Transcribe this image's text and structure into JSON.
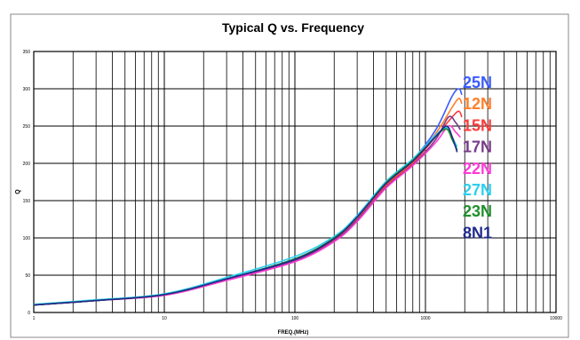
{
  "chart_data": {
    "type": "line",
    "title": "Typical Q vs. Frequency",
    "xlabel": "FREQ.(MHz)",
    "ylabel": "Q",
    "x_scale": "log",
    "xlim": [
      1,
      10000
    ],
    "ylim": [
      0,
      350
    ],
    "x_ticks": [
      1,
      10,
      100,
      1000,
      10000
    ],
    "y_ticks": [
      0,
      50,
      100,
      150,
      200,
      250,
      300,
      350
    ],
    "grid": true,
    "legend_position": "right, inside plot near top",
    "series": [
      {
        "name": "25N",
        "color": "#3a5bff",
        "x": [
          1,
          3,
          10,
          30,
          100,
          200,
          300,
          500,
          800,
          1200,
          1600,
          1800,
          1900
        ],
        "y": [
          10,
          16,
          24,
          45,
          72,
          100,
          130,
          175,
          205,
          245,
          290,
          300,
          292
        ]
      },
      {
        "name": "12N",
        "color": "#ff7f2a",
        "x": [
          1,
          3,
          10,
          30,
          100,
          200,
          300,
          500,
          800,
          1200,
          1600,
          1800,
          1900
        ],
        "y": [
          10,
          16,
          24,
          44,
          70,
          98,
          127,
          172,
          202,
          240,
          275,
          287,
          280
        ]
      },
      {
        "name": "15N",
        "color": "#ff3b3b",
        "x": [
          1,
          3,
          10,
          30,
          100,
          200,
          300,
          500,
          800,
          1200,
          1600,
          1800,
          1900
        ],
        "y": [
          10,
          16,
          24,
          44,
          70,
          97,
          125,
          170,
          200,
          236,
          262,
          270,
          262
        ]
      },
      {
        "name": "17N",
        "color": "#7a3a8a",
        "x": [
          1,
          3,
          10,
          30,
          100,
          200,
          300,
          500,
          800,
          1200,
          1500,
          1700,
          1850
        ],
        "y": [
          10,
          16,
          24,
          44,
          69,
          96,
          124,
          168,
          198,
          232,
          262,
          255,
          245
        ]
      },
      {
        "name": "22N",
        "color": "#ff3ad6",
        "x": [
          1,
          3,
          10,
          30,
          100,
          200,
          300,
          500,
          800,
          1200,
          1500,
          1700,
          1850
        ],
        "y": [
          10,
          16,
          23,
          43,
          68,
          95,
          122,
          167,
          197,
          228,
          250,
          242,
          235
        ]
      },
      {
        "name": "27N",
        "color": "#2ad0f0",
        "x": [
          1,
          3,
          10,
          30,
          100,
          200,
          300,
          500,
          800,
          1200,
          1450,
          1600,
          1750
        ],
        "y": [
          11,
          17,
          25,
          47,
          75,
          102,
          130,
          176,
          206,
          238,
          248,
          235,
          222
        ]
      },
      {
        "name": "23N",
        "color": "#1f8f2a",
        "x": [
          1,
          3,
          10,
          30,
          100,
          200,
          300,
          500,
          800,
          1200,
          1450,
          1600,
          1750
        ],
        "y": [
          10,
          16,
          24,
          45,
          72,
          100,
          128,
          174,
          204,
          236,
          246,
          232,
          218
        ]
      },
      {
        "name": "8N1",
        "color": "#1f2a8a",
        "x": [
          1,
          3,
          10,
          30,
          100,
          200,
          300,
          500,
          800,
          1200,
          1450,
          1600,
          1750
        ],
        "y": [
          10,
          16,
          24,
          45,
          71,
          99,
          128,
          173,
          203,
          236,
          250,
          236,
          215
        ]
      }
    ]
  }
}
